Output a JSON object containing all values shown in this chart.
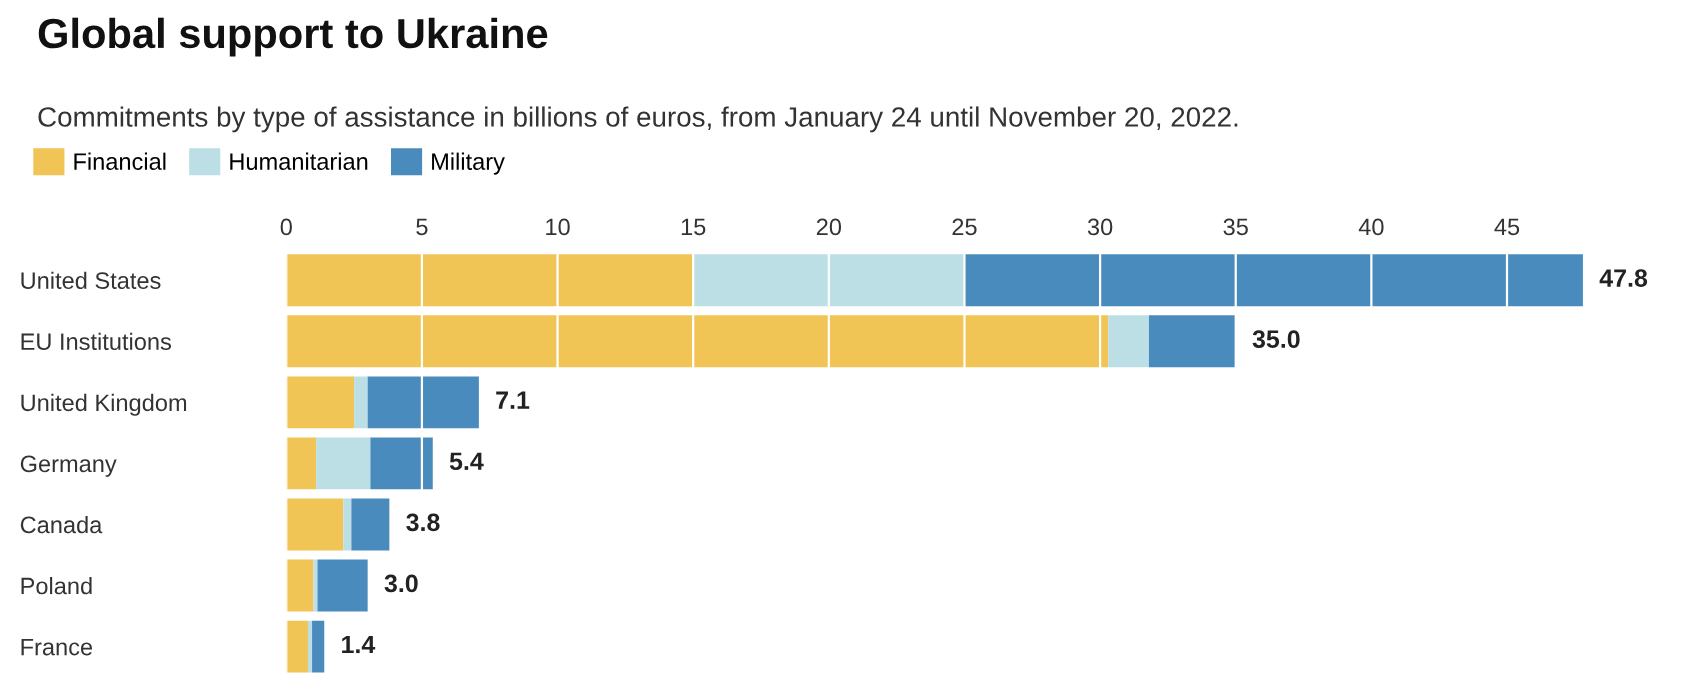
{
  "chart_data": {
    "type": "bar",
    "orientation": "horizontal",
    "stacked": true,
    "title": "Global support to Ukraine",
    "subtitle": "Commitments by type of assistance in billions of euros, from January 24 until November 20, 2022.",
    "categories": [
      "United States",
      "EU Institutions",
      "United Kingdom",
      "Germany",
      "Canada",
      "Poland",
      "France"
    ],
    "series": [
      {
        "name": "Financial",
        "color": "#f0c455",
        "values": [
          15.0,
          30.3,
          2.5,
          1.1,
          2.1,
          1.0,
          0.8
        ]
      },
      {
        "name": "Humanitarian",
        "color": "#bcdfe6",
        "values": [
          10.0,
          1.5,
          0.5,
          2.0,
          0.3,
          0.15,
          0.15
        ]
      },
      {
        "name": "Military",
        "color": "#4a8bbd",
        "values": [
          22.8,
          3.2,
          4.1,
          2.3,
          1.4,
          1.85,
          0.45
        ]
      }
    ],
    "totals": [
      "47.8",
      "35.0",
      "7.1",
      "5.4",
      "3.8",
      "3.0",
      "1.4"
    ],
    "xlim": [
      0,
      47.8
    ],
    "xticks": [
      0,
      5,
      10,
      15,
      20,
      25,
      30,
      35,
      40,
      45
    ],
    "grid": "x",
    "legend": "top left"
  }
}
